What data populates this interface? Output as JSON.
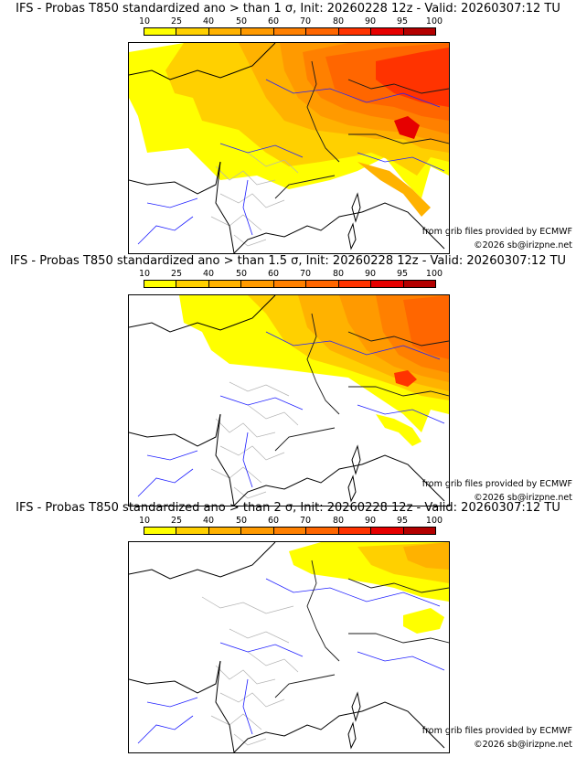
{
  "colorbar": {
    "labels": [
      "10",
      "25",
      "40",
      "50",
      "60",
      "70",
      "80",
      "90",
      "95",
      "100"
    ],
    "colors": [
      "#ffff00",
      "#ffd000",
      "#ffb200",
      "#ff9a00",
      "#ff8000",
      "#ff6600",
      "#ff3300",
      "#e60000",
      "#b30000",
      "#800000"
    ]
  },
  "land": {
    "base_color": "#ffffff",
    "coast_color": "#000000",
    "border_color": "#1a1a1a",
    "region_color": "#b3b3b3",
    "river_color": "#2020ff"
  },
  "panels": [
    {
      "title": "IFS - Probas T850  standardized ano > than 1 σ, Init: 20260228 12z - Valid: 20260307:12 TU",
      "source_credit": "from grib files provided by ECMWF",
      "copyright": "©2026 sb@irizpne.net"
    },
    {
      "title": "IFS - Probas T850  standardized ano > than 1.5 σ, Init: 20260228 12z - Valid: 20260307:12 TU",
      "source_credit": "from grib files provided by ECMWF",
      "copyright": "©2026 sb@irizpne.net"
    },
    {
      "title": "IFS - Probas T850  standardized ano > than 2 σ, Init: 20260228 12z - Valid: 20260307:12 TU",
      "source_credit": "from grib files provided by ECMWF",
      "copyright": "©2026 sb@irizpne.net"
    }
  ]
}
